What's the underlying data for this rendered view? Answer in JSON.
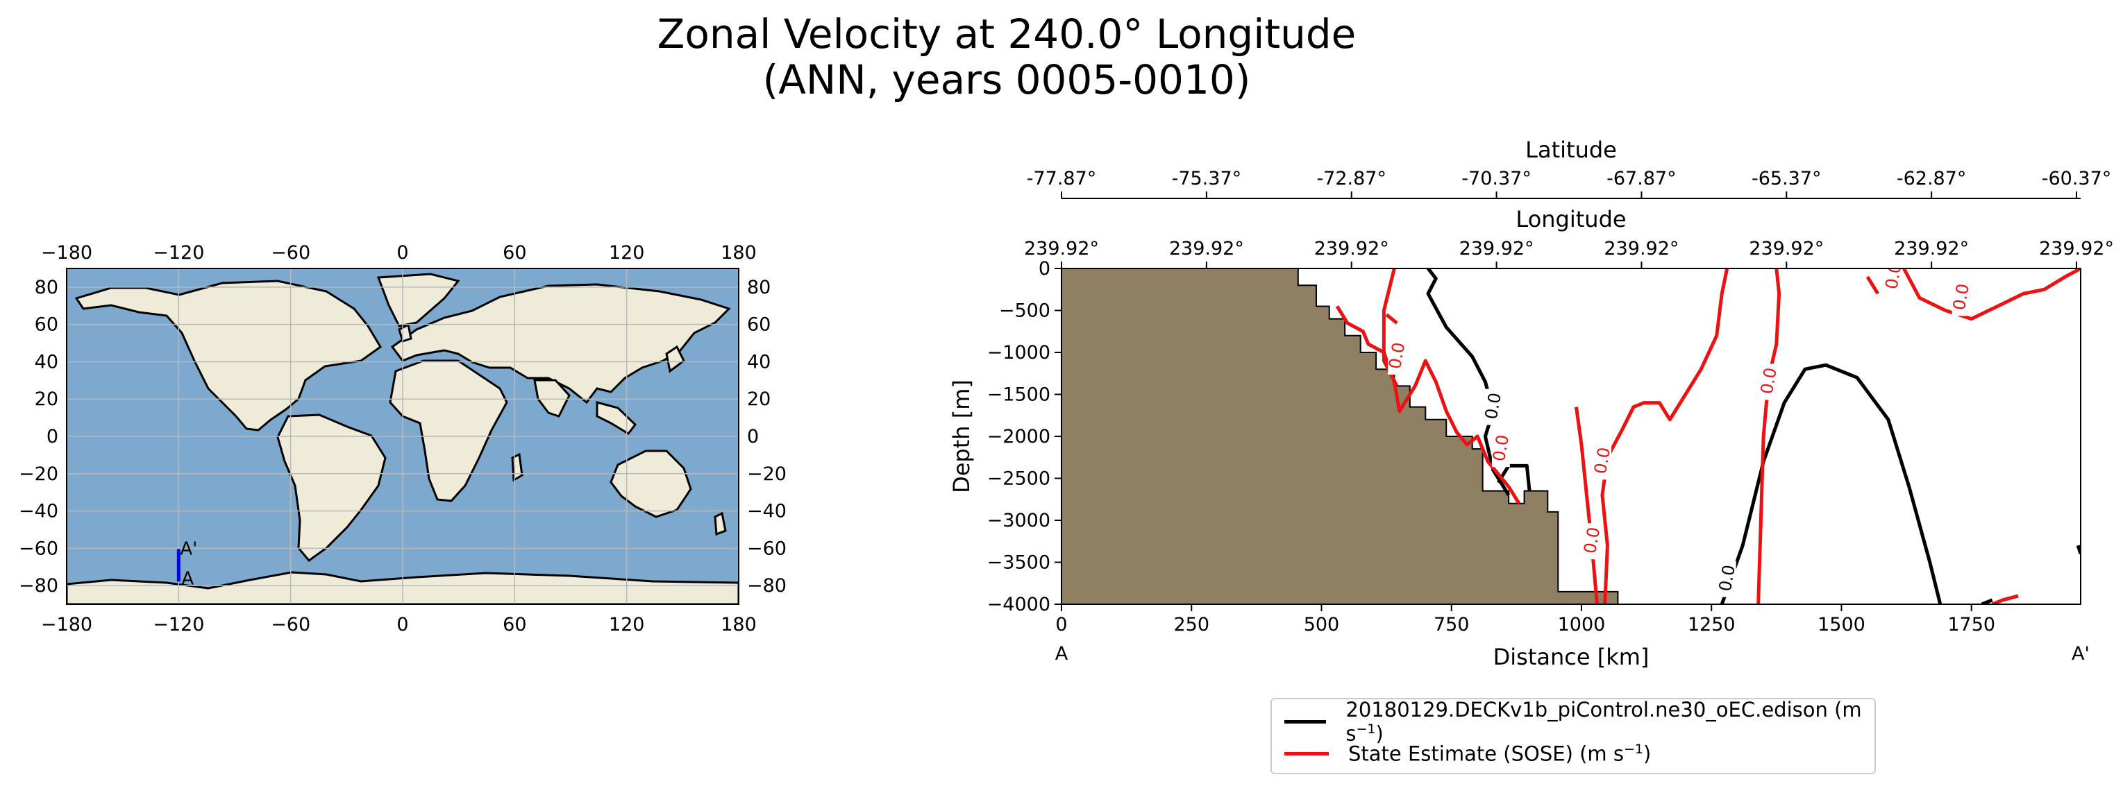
{
  "title": {
    "line1": "Zonal Velocity at 240.0° Longitude",
    "line2": "(ANN, years 0005-0010)"
  },
  "colors": {
    "ocean": "#7ea9cf",
    "land": "#efebd9",
    "bathymetry": "#8f7f63",
    "model": "#000000",
    "obs": "#ee1111",
    "transect": "#0000ff"
  },
  "chart_data": [
    {
      "type": "map",
      "title": "",
      "projection": "PlateCarree",
      "lon_ticks": [
        -180,
        -120,
        -60,
        0,
        60,
        120,
        180
      ],
      "lat_ticks": [
        80,
        60,
        40,
        20,
        0,
        -20,
        -40,
        -60,
        -80
      ],
      "lon_range": [
        -180,
        180
      ],
      "lat_range": [
        -90,
        90
      ],
      "grid": true,
      "transect": {
        "start_label": "A",
        "end_label": "A'",
        "lon": -120,
        "lat_start": -77.87,
        "lat_end": -60.37
      }
    },
    {
      "type": "line",
      "title": "",
      "xlabel": "Distance [km]",
      "ylabel": "Depth [m]",
      "xlim": [
        0,
        1960
      ],
      "ylim": [
        -4000,
        0
      ],
      "x_ticks": [
        0,
        250,
        500,
        750,
        1000,
        1250,
        1500,
        1750
      ],
      "y_ticks": [
        0,
        -500,
        -1000,
        -1500,
        -2000,
        -2500,
        -3000,
        -3500,
        -4000
      ],
      "x_end_labels": {
        "left": "A",
        "right": "A'"
      },
      "top_axis_lat": {
        "label": "Latitude",
        "ticks": [
          "-77.87°",
          "-75.37°",
          "-72.87°",
          "-70.37°",
          "-67.87°",
          "-65.37°",
          "-62.87°",
          "-60.37°"
        ]
      },
      "top_axis_lon": {
        "label": "Longitude",
        "ticks": [
          "239.92°",
          "239.92°",
          "239.92°",
          "239.92°",
          "239.92°",
          "239.92°",
          "239.92°",
          "239.92°"
        ]
      },
      "bathymetry": [
        [
          0,
          0
        ],
        [
          455,
          0
        ],
        [
          455,
          -200
        ],
        [
          490,
          -200
        ],
        [
          490,
          -450
        ],
        [
          515,
          -450
        ],
        [
          515,
          -600
        ],
        [
          545,
          -600
        ],
        [
          545,
          -800
        ],
        [
          575,
          -800
        ],
        [
          575,
          -1000
        ],
        [
          605,
          -1000
        ],
        [
          605,
          -1200
        ],
        [
          640,
          -1200
        ],
        [
          640,
          -1400
        ],
        [
          670,
          -1400
        ],
        [
          670,
          -1650
        ],
        [
          700,
          -1650
        ],
        [
          700,
          -1800
        ],
        [
          740,
          -1800
        ],
        [
          740,
          -2000
        ],
        [
          790,
          -2000
        ],
        [
          790,
          -2150
        ],
        [
          810,
          -2150
        ],
        [
          810,
          -2650
        ],
        [
          860,
          -2650
        ],
        [
          860,
          -2800
        ],
        [
          890,
          -2800
        ],
        [
          890,
          -2650
        ],
        [
          935,
          -2650
        ],
        [
          935,
          -2900
        ],
        [
          955,
          -2900
        ],
        [
          955,
          -3850
        ],
        [
          1070,
          -3850
        ],
        [
          1070,
          -4000
        ],
        [
          0,
          -4000
        ]
      ],
      "series": [
        {
          "name": "model_contours",
          "color": "#000000",
          "label": "0.0",
          "paths": [
            [
              [
                705,
                0
              ],
              [
                720,
                -120
              ],
              [
                705,
                -300
              ],
              [
                740,
                -700
              ],
              [
                790,
                -1050
              ],
              [
                815,
                -1350
              ],
              [
                830,
                -1700
              ],
              [
                815,
                -2000
              ],
              [
                830,
                -2400
              ],
              [
                860,
                -2700
              ]
            ],
            [
              [
                840,
                -2550
              ],
              [
                860,
                -2350
              ],
              [
                895,
                -2350
              ],
              [
                900,
                -2650
              ]
            ],
            [
              [
                1270,
                -4000
              ],
              [
                1310,
                -3300
              ],
              [
                1350,
                -2300
              ],
              [
                1390,
                -1600
              ],
              [
                1430,
                -1200
              ],
              [
                1470,
                -1150
              ],
              [
                1530,
                -1300
              ],
              [
                1590,
                -1800
              ],
              [
                1630,
                -2600
              ],
              [
                1670,
                -3500
              ],
              [
                1690,
                -4000
              ]
            ],
            [
              [
                1770,
                -4000
              ],
              [
                1790,
                -3950
              ]
            ],
            [
              [
                1955,
                -3300
              ],
              [
                1960,
                -3400
              ]
            ]
          ],
          "labels": [
            [
              830,
              -1650,
              "0.0"
            ],
            [
              1280,
              -3700,
              "0.0"
            ]
          ]
        },
        {
          "name": "sose_contours",
          "color": "#ee1111",
          "label": "0.0",
          "paths": [
            [
              [
                530,
                -450
              ],
              [
                550,
                -650
              ],
              [
                580,
                -750
              ],
              [
                590,
                -900
              ],
              [
                620,
                -1000
              ],
              [
                640,
                -1350
              ],
              [
                650,
                -1700
              ],
              [
                680,
                -1400
              ],
              [
                700,
                -1100
              ],
              [
                720,
                -1350
              ],
              [
                740,
                -1700
              ],
              [
                760,
                -1950
              ],
              [
                780,
                -2100
              ],
              [
                800,
                -2000
              ],
              [
                820,
                -2300
              ],
              [
                860,
                -2600
              ],
              [
                880,
                -2800
              ]
            ],
            [
              [
                625,
                -550
              ],
              [
                645,
                -650
              ]
            ],
            [
              [
                645,
                -1400
              ],
              [
                620,
                -1100
              ],
              [
                620,
                -500
              ],
              [
                640,
                0
              ]
            ],
            [
              [
                990,
                -1650
              ],
              [
                1000,
                -2100
              ],
              [
                1010,
                -2700
              ],
              [
                1020,
                -3300
              ],
              [
                1030,
                -4000
              ]
            ],
            [
              [
                1045,
                -4000
              ],
              [
                1050,
                -3300
              ],
              [
                1040,
                -2700
              ],
              [
                1050,
                -2250
              ],
              [
                1080,
                -1900
              ],
              [
                1100,
                -1650
              ],
              [
                1120,
                -1600
              ],
              [
                1150,
                -1600
              ],
              [
                1170,
                -1800
              ],
              [
                1200,
                -1500
              ],
              [
                1230,
                -1200
              ],
              [
                1260,
                -800
              ],
              [
                1270,
                -300
              ],
              [
                1280,
                0
              ]
            ],
            [
              [
                1340,
                -4000
              ],
              [
                1345,
                -3000
              ],
              [
                1350,
                -2000
              ],
              [
                1360,
                -1300
              ],
              [
                1375,
                -900
              ],
              [
                1380,
                -300
              ],
              [
                1375,
                0
              ]
            ],
            [
              [
                1620,
                0
              ],
              [
                1650,
                -350
              ],
              [
                1700,
                -500
              ],
              [
                1750,
                -600
              ],
              [
                1800,
                -450
              ],
              [
                1850,
                -300
              ],
              [
                1890,
                -250
              ],
              [
                1930,
                -100
              ],
              [
                1960,
                0
              ]
            ],
            [
              [
                1550,
                -100
              ],
              [
                1570,
                -300
              ]
            ],
            [
              [
                1790,
                -4000
              ],
              [
                1810,
                -3950
              ],
              [
                1840,
                -3900
              ]
            ]
          ],
          "labels": [
            [
              645,
              -1050,
              "0.0"
            ],
            [
              845,
              -2150,
              "0.0"
            ],
            [
              1040,
              -2300,
              "0.0"
            ],
            [
              1020,
              -3250,
              "0.0"
            ],
            [
              1360,
              -1350,
              "0.0"
            ],
            [
              1600,
              -100,
              "0.0"
            ],
            [
              1730,
              -350,
              "0.0"
            ]
          ]
        }
      ]
    }
  ],
  "legend": {
    "items": [
      {
        "name": "model",
        "label": "20180129.DECKv1b_piControl.ne30_oEC.edison (m s",
        "sup": "−1",
        "close": ")"
      },
      {
        "name": "sose",
        "label": "State Estimate (SOSE) (m s",
        "sup": "−1",
        "close": ")"
      }
    ]
  }
}
